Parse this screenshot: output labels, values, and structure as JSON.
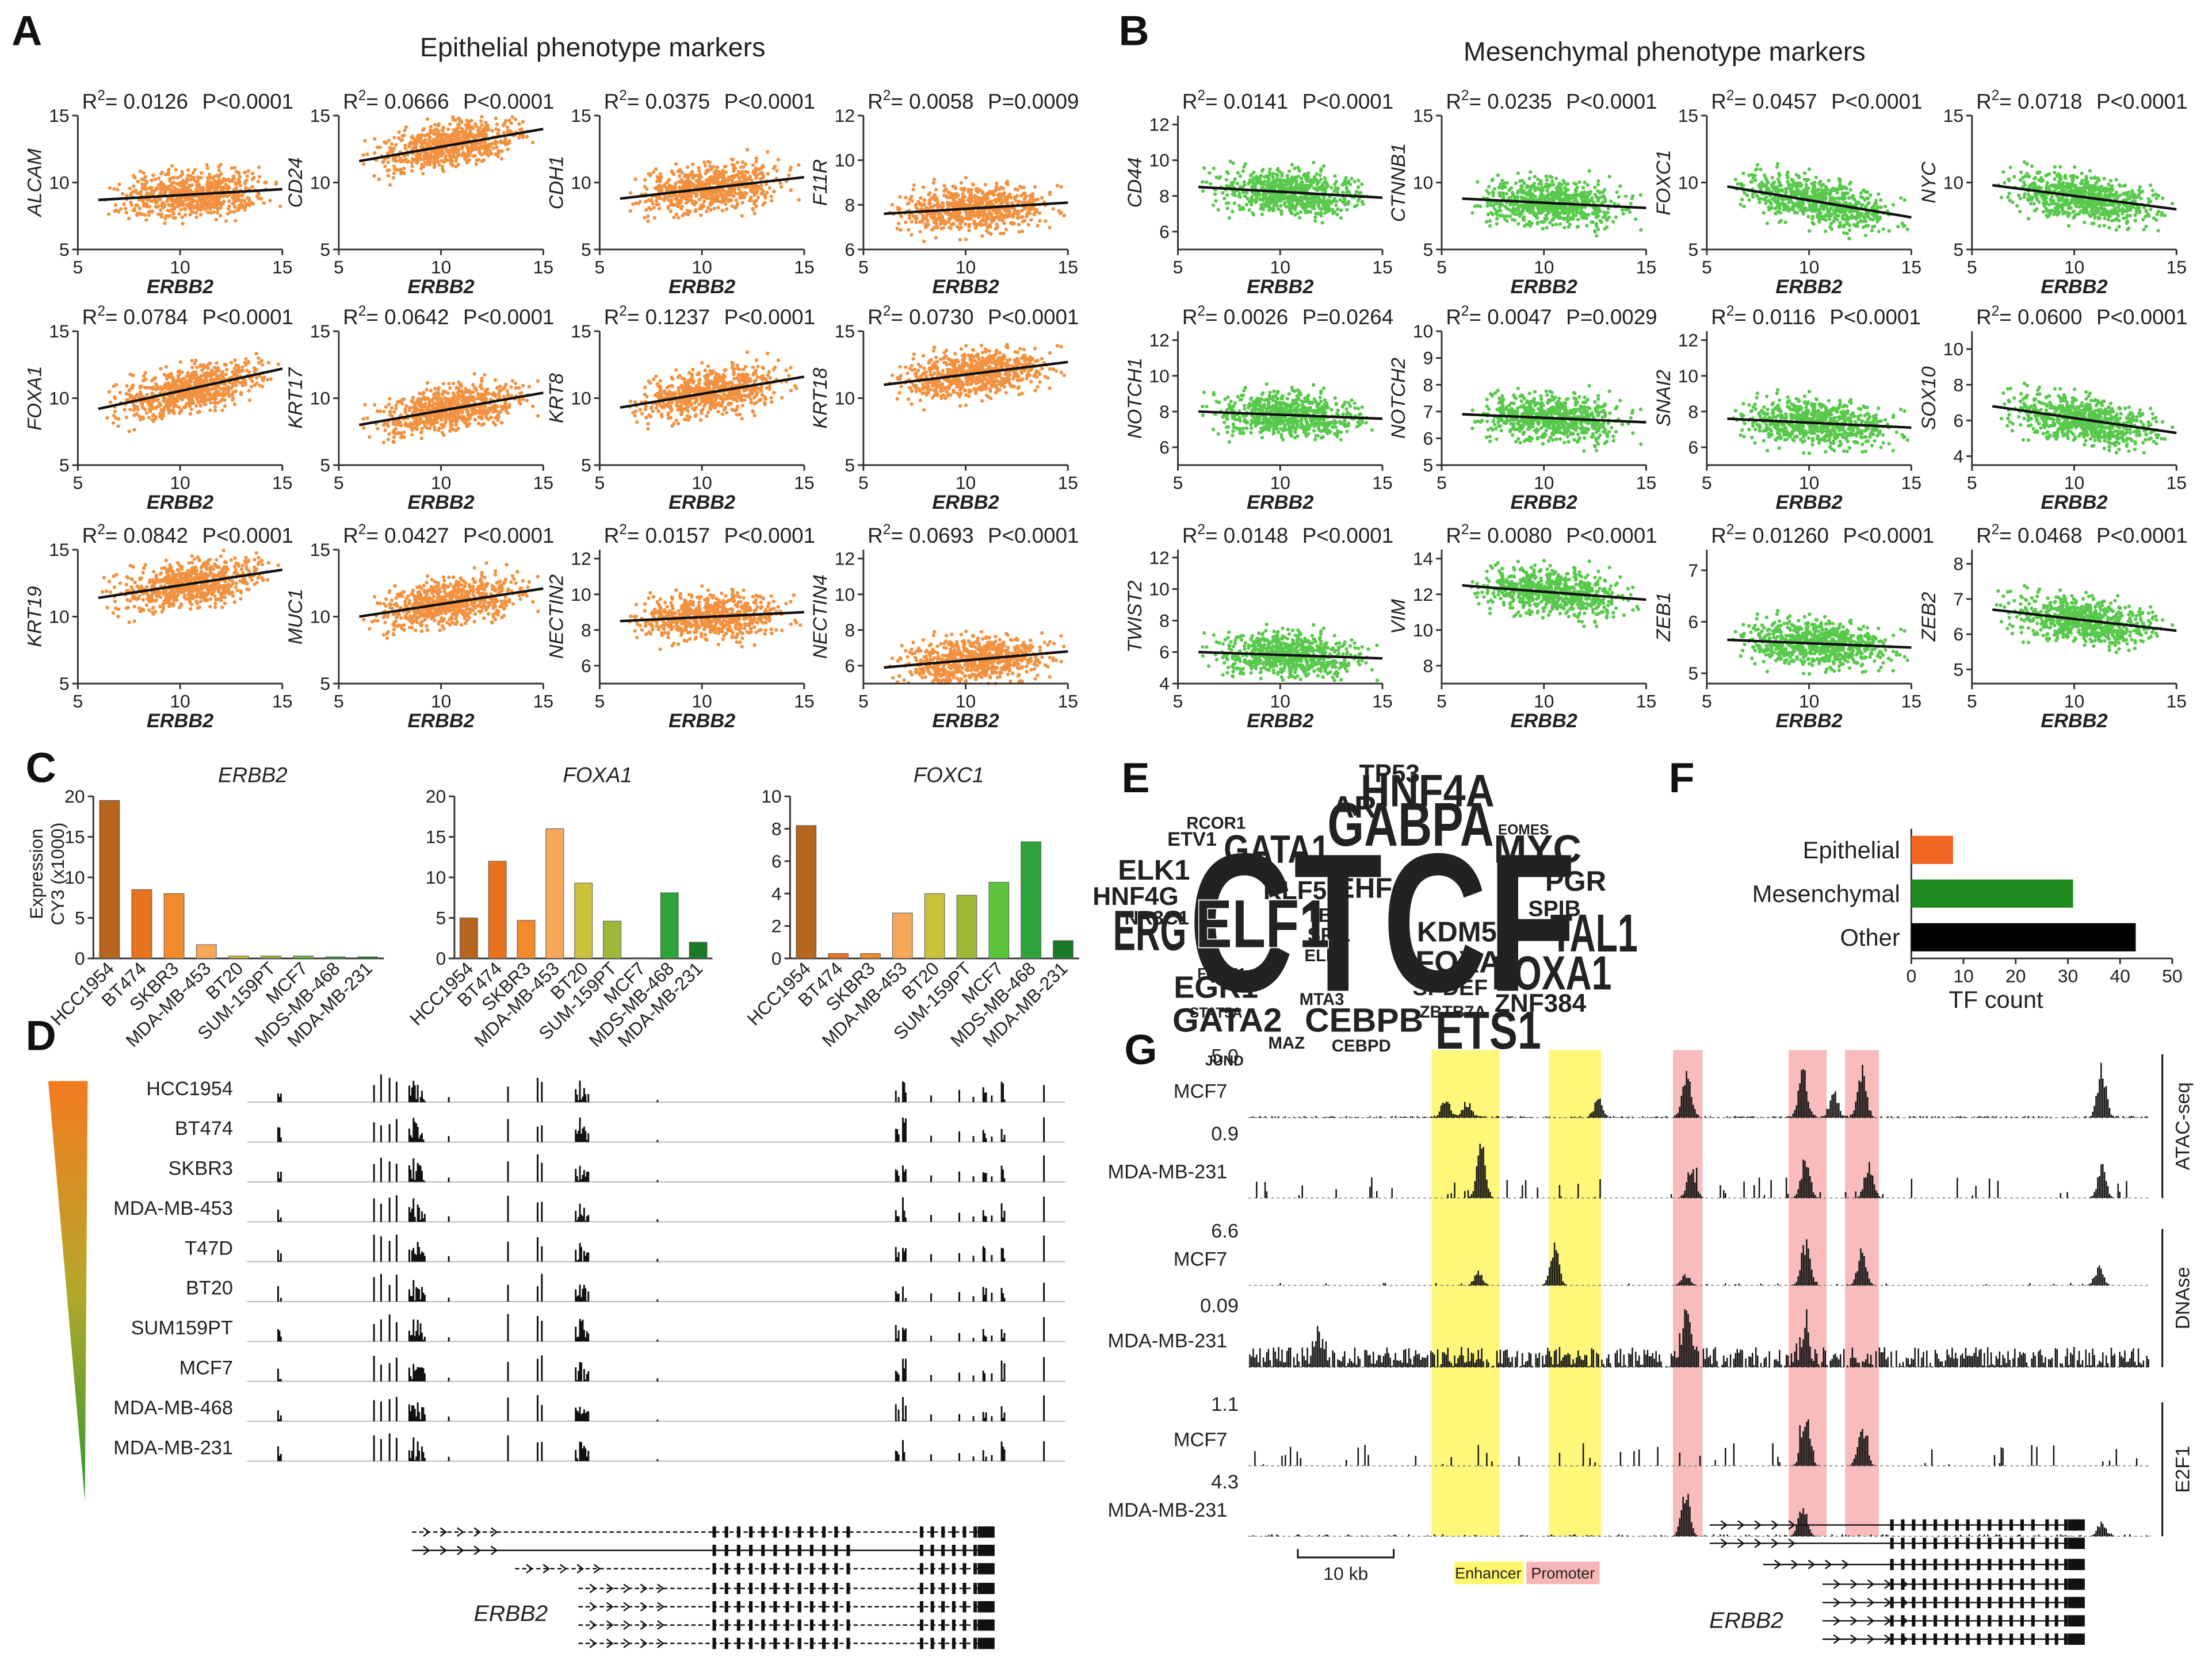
{
  "panel_a": {
    "letter": "A",
    "title": "Epithelial phenotype markers",
    "xlabel": "ERBB2",
    "r2_label": "R",
    "r2_sup": "2",
    "xlim": [
      5,
      15
    ],
    "xticks": [
      5,
      10,
      15
    ],
    "color": "#f07f1e",
    "plots": [
      {
        "gene": "ALCAM",
        "r2": "= 0.0126",
        "p": "P<0.0001",
        "ylim": [
          5,
          15
        ],
        "yticks": [
          5,
          10,
          15
        ],
        "fit": {
          "x": [
            6,
            15
          ],
          "y": [
            8.7,
            9.5
          ]
        }
      },
      {
        "gene": "CD24",
        "r2": "= 0.0666",
        "p": "P<0.0001",
        "ylim": [
          5,
          15
        ],
        "yticks": [
          5,
          10,
          15
        ],
        "fit": {
          "x": [
            6,
            15
          ],
          "y": [
            11.6,
            14
          ]
        }
      },
      {
        "gene": "CDH1",
        "r2": "= 0.0375",
        "p": "P<0.0001",
        "ylim": [
          5,
          15
        ],
        "yticks": [
          5,
          10,
          15
        ],
        "fit": {
          "x": [
            6,
            15
          ],
          "y": [
            8.8,
            10.4
          ]
        }
      },
      {
        "gene": "F11R",
        "r2": "= 0.0058",
        "p": "P=0.0009",
        "ylim": [
          6,
          12
        ],
        "yticks": [
          6,
          8,
          10,
          12
        ],
        "fit": {
          "x": [
            6,
            15
          ],
          "y": [
            7.6,
            8.1
          ]
        }
      },
      {
        "gene": "FOXA1",
        "r2": "= 0.0784",
        "p": "P<0.0001",
        "ylim": [
          5,
          15
        ],
        "yticks": [
          5,
          10,
          15
        ],
        "fit": {
          "x": [
            6,
            15
          ],
          "y": [
            9.2,
            12.2
          ]
        }
      },
      {
        "gene": "KRT17",
        "r2": "= 0.0642",
        "p": "P<0.0001",
        "ylim": [
          5,
          15
        ],
        "yticks": [
          5,
          10,
          15
        ],
        "fit": {
          "x": [
            6,
            15
          ],
          "y": [
            8,
            10.4
          ]
        }
      },
      {
        "gene": "KRT8",
        "r2": "= 0.1237",
        "p": "P<0.0001",
        "ylim": [
          5,
          15
        ],
        "yticks": [
          5,
          10,
          15
        ],
        "fit": {
          "x": [
            6,
            15
          ],
          "y": [
            9.3,
            11.6
          ]
        }
      },
      {
        "gene": "KRT18",
        "r2": "= 0.0730",
        "p": "P<0.0001",
        "ylim": [
          5,
          15
        ],
        "yticks": [
          5,
          10,
          15
        ],
        "fit": {
          "x": [
            6,
            15
          ],
          "y": [
            11,
            12.7
          ]
        }
      },
      {
        "gene": "KRT19",
        "r2": "= 0.0842",
        "p": "P<0.0001",
        "ylim": [
          5,
          15
        ],
        "yticks": [
          5,
          10,
          15
        ],
        "fit": {
          "x": [
            6,
            15
          ],
          "y": [
            11.4,
            13.5
          ]
        }
      },
      {
        "gene": "MUC1",
        "r2": "= 0.0427",
        "p": "P<0.0001",
        "ylim": [
          5,
          15
        ],
        "yticks": [
          5,
          10,
          15
        ],
        "fit": {
          "x": [
            6,
            15
          ],
          "y": [
            10,
            12.1
          ]
        }
      },
      {
        "gene": "NECTIN2",
        "r2": "= 0.0157",
        "p": "P<0.0001",
        "ylim": [
          5,
          12.5
        ],
        "yticks": [
          6,
          8,
          10,
          12
        ],
        "fit": {
          "x": [
            6,
            15
          ],
          "y": [
            8.5,
            9
          ]
        }
      },
      {
        "gene": "NECTIN4",
        "r2": "= 0.0693",
        "p": "P<0.0001",
        "ylim": [
          5,
          12.5
        ],
        "yticks": [
          6,
          8,
          10,
          12
        ],
        "fit": {
          "x": [
            6,
            15
          ],
          "y": [
            5.9,
            6.8
          ]
        }
      }
    ]
  },
  "panel_b": {
    "letter": "B",
    "title": "Mesenchymal phenotype markers",
    "xlabel": "ERBB2",
    "r2_label": "R",
    "r2_sup": "2",
    "xlim": [
      5,
      15
    ],
    "xticks": [
      5,
      10,
      15
    ],
    "color": "#3cbf2e",
    "plots": [
      {
        "gene": "CD44",
        "r2": "= 0.0141",
        "p": "P<0.0001",
        "ylim": [
          5,
          12.5
        ],
        "yticks": [
          6,
          8,
          10,
          12
        ],
        "fit": {
          "x": [
            6,
            15
          ],
          "y": [
            8.5,
            7.9
          ]
        }
      },
      {
        "gene": "CTNNB1",
        "r2": "= 0.0235",
        "p": "P<0.0001",
        "ylim": [
          5,
          15
        ],
        "yticks": [
          5,
          10,
          15
        ],
        "fit": {
          "x": [
            6,
            15
          ],
          "y": [
            8.8,
            8.1
          ]
        }
      },
      {
        "gene": "FOXC1",
        "r2": "= 0.0457",
        "p": "P<0.0001",
        "ylim": [
          5,
          15
        ],
        "yticks": [
          5,
          10,
          15
        ],
        "fit": {
          "x": [
            6,
            15
          ],
          "y": [
            9.7,
            7.4
          ]
        }
      },
      {
        "gene": "NYC",
        "r2": "= 0.0718",
        "p": "P<0.0001",
        "ylim": [
          5,
          15
        ],
        "yticks": [
          5,
          10,
          15
        ],
        "fit": {
          "x": [
            6,
            15
          ],
          "y": [
            9.8,
            8
          ]
        }
      },
      {
        "gene": "NOTCH1",
        "r2": "= 0.0026",
        "p": "P=0.0264",
        "ylim": [
          5,
          12.5
        ],
        "yticks": [
          6,
          8,
          10,
          12
        ],
        "fit": {
          "x": [
            6,
            15
          ],
          "y": [
            8,
            7.6
          ]
        }
      },
      {
        "gene": "NOTCH2",
        "r2": "= 0.0047",
        "p": "P=0.0029",
        "ylim": [
          5,
          10
        ],
        "yticks": [
          5,
          6,
          7,
          8,
          9,
          10
        ],
        "fit": {
          "x": [
            6,
            15
          ],
          "y": [
            6.9,
            6.6
          ]
        }
      },
      {
        "gene": "SNAI2",
        "r2": "= 0.0116",
        "p": "P<0.0001",
        "ylim": [
          5,
          12.5
        ],
        "yticks": [
          6,
          8,
          10,
          12
        ],
        "fit": {
          "x": [
            6,
            15
          ],
          "y": [
            7.6,
            7.1
          ]
        }
      },
      {
        "gene": "SOX10",
        "r2": "= 0.0600",
        "p": "P<0.0001",
        "ylim": [
          3.5,
          11
        ],
        "yticks": [
          4,
          6,
          8,
          10
        ],
        "fit": {
          "x": [
            6,
            15
          ],
          "y": [
            6.8,
            5.3
          ]
        }
      },
      {
        "gene": "TWIST2",
        "r2": "= 0.0148",
        "p": "P<0.0001",
        "ylim": [
          4,
          12.5
        ],
        "yticks": [
          4,
          6,
          8,
          10,
          12
        ],
        "fit": {
          "x": [
            6,
            15
          ],
          "y": [
            6,
            5.6
          ]
        }
      },
      {
        "gene": "VIM",
        "r2": "= 0.0080",
        "p": "P<0.0001",
        "ylim": [
          7,
          14.5
        ],
        "yticks": [
          8,
          10,
          12,
          14
        ],
        "fit": {
          "x": [
            6,
            15
          ],
          "y": [
            12.5,
            11.7
          ]
        }
      },
      {
        "gene": "ZEB1",
        "r2": "= 0.01260",
        "p": "P<0.0001",
        "ylim": [
          4.8,
          7.4
        ],
        "yticks": [
          5,
          6,
          7
        ],
        "fit": {
          "x": [
            6,
            15
          ],
          "y": [
            5.65,
            5.5
          ]
        }
      },
      {
        "gene": "ZEB2",
        "r2": "= 0.0468",
        "p": "P<0.0001",
        "ylim": [
          4.6,
          8.4
        ],
        "yticks": [
          5,
          6,
          7,
          8
        ],
        "fit": {
          "x": [
            6,
            15
          ],
          "y": [
            6.7,
            6.1
          ]
        }
      }
    ]
  },
  "panel_c": {
    "letter": "C",
    "ylabel": [
      "Expression",
      "CY3 (x1000)"
    ],
    "categories": [
      "HCC1954",
      "BT474",
      "SKBR3",
      "MDA-MB-453",
      "BT20",
      "SUM-159PT",
      "MCF7",
      "MDS-MB-468",
      "MDA-MB-231"
    ],
    "colors": [
      "#b5651d",
      "#e8731e",
      "#f08a2a",
      "#f5a85a",
      "#c9c23a",
      "#9fb83a",
      "#5cc43a",
      "#2ea33a",
      "#1a7a28"
    ],
    "charts": [
      {
        "title": "ERBB2",
        "values": [
          19.5,
          8.5,
          8,
          1.7,
          0.3,
          0.3,
          0.3,
          0.2,
          0.2
        ],
        "ylim": [
          0,
          20
        ],
        "yticks": [
          0,
          5,
          10,
          15,
          20
        ]
      },
      {
        "title": "FOXA1",
        "values": [
          5,
          12,
          4.7,
          16,
          9.3,
          4.6,
          0.1,
          8.1,
          2
        ],
        "ylim": [
          0,
          20
        ],
        "yticks": [
          0,
          5,
          10,
          15,
          20
        ]
      },
      {
        "title": "FOXC1",
        "values": [
          8.2,
          0.3,
          0.3,
          2.8,
          4,
          3.9,
          4.7,
          7.2,
          1.1
        ],
        "ylim": [
          0,
          10
        ],
        "yticks": [
          0,
          2,
          4,
          6,
          8,
          10
        ]
      }
    ]
  },
  "panel_d": {
    "letter": "D",
    "cells": [
      "HCC1954",
      "BT474",
      "SKBR3",
      "MDA-MB-453",
      "T47D",
      "BT20",
      "SUM159PT",
      "MCF7",
      "MDA-MB-468",
      "MDA-MB-231"
    ],
    "gene": "ERBB2"
  },
  "panel_e": {
    "letter": "E",
    "words": [
      {
        "text": "CTCF",
        "color": "#111111"
      },
      {
        "text": "ELF1",
        "color": "#111111"
      },
      {
        "text": "ERG",
        "color": "#111111"
      },
      {
        "text": "GABPA",
        "color": "#e8952b"
      },
      {
        "text": "HNF4A",
        "color": "#111111"
      },
      {
        "text": "TP53",
        "color": "#111111"
      },
      {
        "text": "AR",
        "color": "#111111"
      },
      {
        "text": "GATA1",
        "color": "#3a9a3a"
      },
      {
        "text": "MYC",
        "color": "#3a9a3a"
      },
      {
        "text": "TAL1",
        "color": "#111111"
      },
      {
        "text": "PGR",
        "color": "#111111"
      },
      {
        "text": "SPIB",
        "color": "#111111"
      },
      {
        "text": "FOXA1",
        "color": "#e8952b"
      },
      {
        "text": "FOXA2",
        "color": "#e8952b"
      },
      {
        "text": "KDM5A",
        "color": "#3a9a3a"
      },
      {
        "text": "ZNF384",
        "color": "#111111"
      },
      {
        "text": "ETS1",
        "color": "#3a9a3a"
      },
      {
        "text": "SPDEF",
        "color": "#111111"
      },
      {
        "text": "CEBPB",
        "color": "#111111"
      },
      {
        "text": "CEBPD",
        "color": "#111111"
      },
      {
        "text": "EHF",
        "color": "#111111"
      },
      {
        "text": "KLF5",
        "color": "#111111"
      },
      {
        "text": "TBP",
        "color": "#111111"
      },
      {
        "text": "SPI1",
        "color": "#111111"
      },
      {
        "text": "ELK4",
        "color": "#111111"
      },
      {
        "text": "MTA3",
        "color": "#111111"
      },
      {
        "text": "GATA2",
        "color": "#3a9a3a"
      },
      {
        "text": "EGR1",
        "color": "#3a9a3a"
      },
      {
        "text": "HNF4G",
        "color": "#111111"
      },
      {
        "text": "NR3C1",
        "color": "#111111"
      },
      {
        "text": "ELK1",
        "color": "#111111"
      },
      {
        "text": "ETV1",
        "color": "#3a9a3a"
      },
      {
        "text": "RCOR1",
        "color": "#111111"
      },
      {
        "text": "EOMES",
        "color": "#111111"
      },
      {
        "text": "STAT5A",
        "color": "#3a9a3a"
      },
      {
        "text": "ZBTB7A",
        "color": "#3a9a3a"
      },
      {
        "text": "MAZ",
        "color": "#3a9a3a"
      },
      {
        "text": "JUND",
        "color": "#3a9a3a"
      },
      {
        "text": "FOXM1",
        "color": "#3a9a3a"
      }
    ]
  },
  "panel_f": {
    "letter": "F",
    "type": "bar",
    "categories": [
      "Epithelial",
      "Mesenchymal",
      "Other"
    ],
    "values": [
      8,
      31,
      43
    ],
    "colors": [
      "#f26522",
      "#1e8b1e",
      "#000000"
    ],
    "xlim": [
      0,
      50
    ],
    "xticks": [
      0,
      10,
      20,
      30,
      40,
      50
    ],
    "xlabel": "TF count"
  },
  "panel_g": {
    "letter": "G",
    "groups": [
      {
        "assay": "ATAC-seq",
        "tracks": [
          {
            "cell": "MCF7",
            "scale": "5.0"
          },
          {
            "cell": "MDA-MB-231",
            "scale": "0.9"
          }
        ]
      },
      {
        "assay": "DNAse",
        "tracks": [
          {
            "cell": "MCF7",
            "scale": "6.6"
          },
          {
            "cell": "MDA-MB-231",
            "scale": "0.09"
          }
        ]
      },
      {
        "assay": "E2F1",
        "tracks": [
          {
            "cell": "MCF7",
            "scale": "1.1"
          },
          {
            "cell": "MDA-MB-231",
            "scale": "4.3"
          }
        ]
      }
    ],
    "scale_bar": "10 kb",
    "legend": [
      "Enhancer",
      "Promoter"
    ],
    "gene": "ERBB2"
  }
}
